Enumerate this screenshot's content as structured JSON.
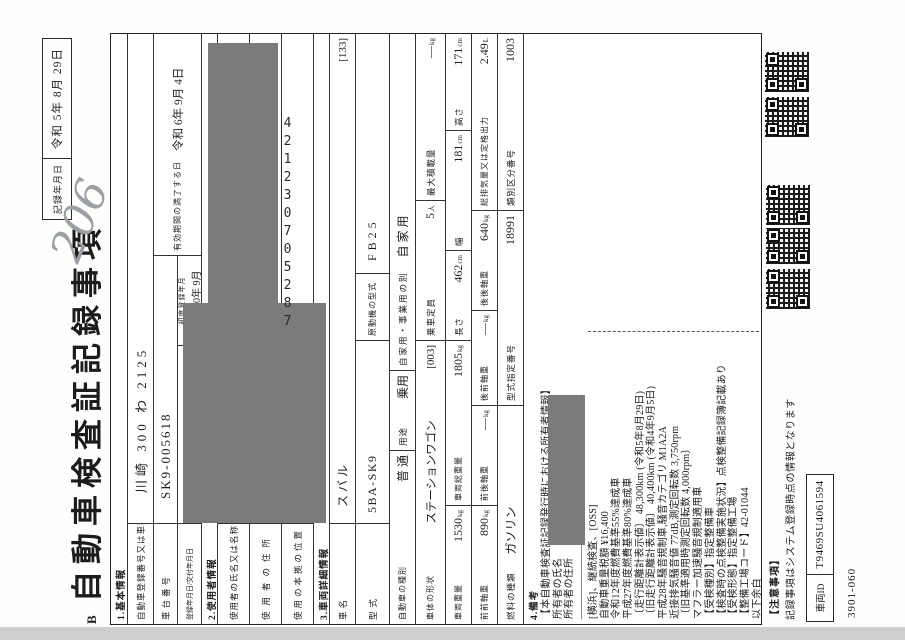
{
  "overlay": {
    "fax_number": "421230705287",
    "handwritten_note": "206"
  },
  "page": {
    "page_mark": "B",
    "title": "自動車検査証記録事項",
    "record_date_label": "記録年月日",
    "record_date_value": "令和  5年  8月 29日",
    "form_number": "3901-060"
  },
  "sections": {
    "s1": "1.基本情報",
    "s2": "2.使用者情報",
    "s3": "3.車両詳細情報",
    "s4": "4.備考"
  },
  "rows": {
    "regno": {
      "label": "自動車登録番号又は車両番号",
      "value": "川崎 300 わ 2125"
    },
    "chassis": {
      "label": "車台番号",
      "value": "SK9-005618"
    },
    "regdate": {
      "label": "登録年月日/交付年月日",
      "value": "平成 30年 9月 3日"
    },
    "firstreg": {
      "label": "初度登録年月",
      "value": "平成 30年 9月"
    },
    "expiry": {
      "label": "有効期間の満了する日",
      "value": "令和 6年 9月 4日"
    },
    "username": {
      "label": "使用者の氏名又は名称"
    },
    "useraddr": {
      "label": "使用者の住所"
    },
    "usebase": {
      "label": "使用の本拠の位置"
    },
    "carname": {
      "label": "車名",
      "value": "スバル",
      "code": "[133]"
    },
    "model": {
      "label": "型式",
      "value": "5BA-SK9"
    },
    "engine": {
      "label": "原動機の型式",
      "value": "FB25"
    },
    "kind": {
      "label": "自動車の種別",
      "value": "普 通"
    },
    "usage": {
      "label": "用途",
      "value": "乗用"
    },
    "private": {
      "label": "自家用・事業用の別",
      "value": "自 家 用"
    },
    "capacity": {
      "label": "乗車定員",
      "value": "5",
      "unit": "人"
    },
    "maxload": {
      "label": "最大積載量",
      "value": "―",
      "unit": "kg"
    },
    "body": {
      "label": "車体の形状",
      "value": "ステーションワゴン",
      "code": "[003]"
    },
    "weight": {
      "label": "車両重量",
      "value": "1530",
      "unit": "kg"
    },
    "gross": {
      "label": "車両総重量",
      "value": "1805",
      "unit": "kg"
    },
    "length": {
      "label": "長さ",
      "value": "462",
      "unit": "cm"
    },
    "width": {
      "label": "幅",
      "value": "181",
      "unit": "cm"
    },
    "height": {
      "label": "高さ",
      "value": "171",
      "unit": "cm"
    },
    "axle_ff": {
      "label": "前前軸重",
      "value": "890",
      "unit": "kg"
    },
    "axle_fr": {
      "label": "前後軸重",
      "value": "―",
      "unit": "kg"
    },
    "axle_rf": {
      "label": "後前軸重",
      "value": "―",
      "unit": "kg"
    },
    "axle_rr": {
      "label": "後後軸重",
      "value": "640",
      "unit": "kg"
    },
    "disp": {
      "label": "総排気量又は定格出力",
      "value": "2.49",
      "unit": "L"
    },
    "fuel": {
      "label": "燃料の種類",
      "value": "ガソリン"
    },
    "type_no": {
      "label": "型式指定番号",
      "value": "18991"
    },
    "class_no": {
      "label": "類別区分番号",
      "value": "1003"
    }
  },
  "remarks": {
    "lines": [
      "【本自動車検査証記録発行時における所有者情報】",
      "所有者の氏名",
      "所有者の住所",
      "――――――――――――――――――――――",
      "[横浜]、継続検査、[OSS]",
      "自動車重量税額  ¥16,400",
      "令和12年度燃費基準55%達成車",
      "平成27年度燃費基準80%達成車",
      "〔走行距離計表示値〕 48,300km (令和5年8月29日)",
      "〔旧走行距離計表示値〕 40,400km (令和4年9月5日)",
      "平成28年騒音規制車,騒音カテゴリ M1A2A",
      "近接排気騒音値 77dB,測定回転数 3,750rpm",
      "〔旧基準適用時測定回転数 4,000rpm〕",
      "マフラー加速騒音規制適用車",
      "【受検種別】指定整備車",
      "【検査時の点検整備実施状況】点検整備記録簿記載あり",
      "【受検形態】指定整備工場",
      "【整備工場コード】42-01044",
      "以下余白"
    ]
  },
  "footer": {
    "caution_title": "【注意事項】",
    "caution_text": "記録事項はシステム登録時点の情報となります",
    "vehicle_id_label": "車両ID",
    "vehicle_id_value": "T9469SU4061594"
  }
}
